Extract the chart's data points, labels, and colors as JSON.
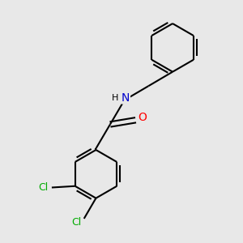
{
  "background_color": "#e8e8e8",
  "bond_color": "#000000",
  "bond_width": 1.5,
  "atom_colors": {
    "N": "#0000cc",
    "O": "#ff0000",
    "Cl": "#00aa00",
    "C": "#000000",
    "H": "#000000"
  },
  "font_size": 9,
  "fig_width": 3.0,
  "fig_height": 3.0,
  "dpi": 100
}
